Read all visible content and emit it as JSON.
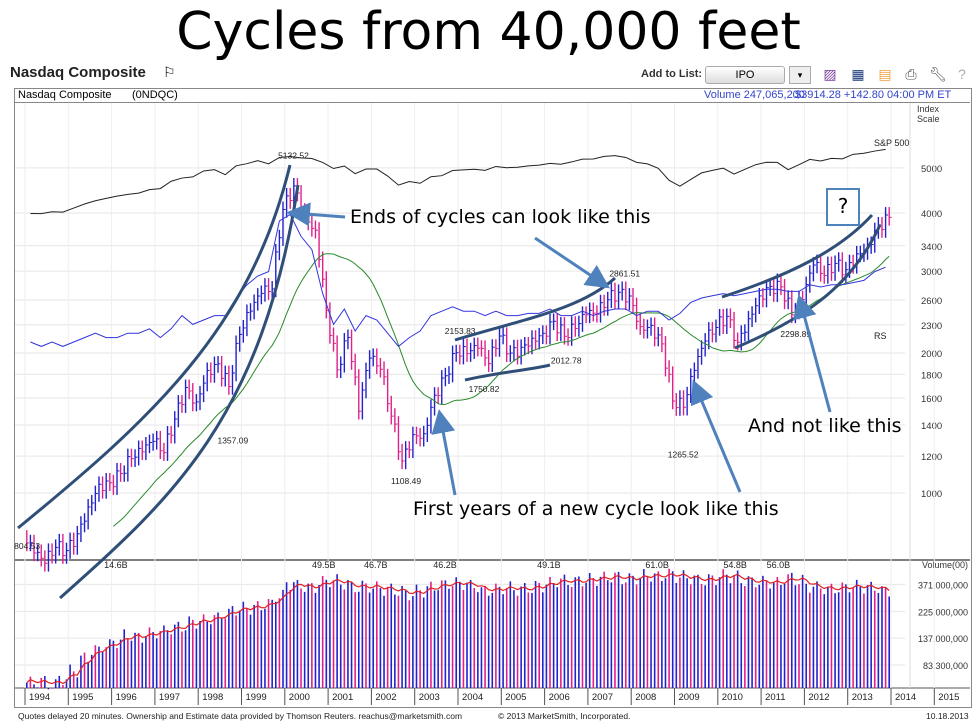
{
  "title": "Cycles from 40,000 feet",
  "header": {
    "name": "Nasdaq Composite",
    "add_to_list": "Add to List:",
    "list_value": "IPO",
    "dropdown": "▾"
  },
  "info": {
    "name": "Nasdaq Composite",
    "symbol": "(0NDQC)",
    "volume": "Volume 247,065,200",
    "quote": "$3914.28 +142.80  04:00 PM ET"
  },
  "footer": {
    "left": "Quotes delayed 20 minutes.  Ownership and Estimate data provided by Thomson Reuters. reachus@marketsmith.com",
    "copyright": "© 2013 MarketSmith, Incorporated.",
    "date": "10.18.2013"
  },
  "annotations": {
    "ends": "Ends of cycles can look like this",
    "first": "First years of a new cycle look like this",
    "not": "And not like this",
    "question": "?"
  },
  "chart_data": {
    "type": "bar",
    "scale_label": "Index Scale",
    "sp_label": "S&P 500",
    "rs_label": "RS",
    "volume_label": "Volume(00)",
    "price_ticks": [
      5000,
      4000,
      3400,
      3000,
      2600,
      2300,
      2000,
      1800,
      1600,
      1400,
      1200,
      1000
    ],
    "volume_ticks": [
      "371,000,000",
      "225,000,000",
      "137,000,000",
      "83,300,000"
    ],
    "volume_tick_values": [
      371,
      225,
      137,
      83.3
    ],
    "years": [
      "1994",
      "1995",
      "1996",
      "1997",
      "1998",
      "1999",
      "2000",
      "2001",
      "2002",
      "2003",
      "2004",
      "2005",
      "2006",
      "2007",
      "2008",
      "2009",
      "2010",
      "2011",
      "2012",
      "2013",
      "2014",
      "2015"
    ],
    "start_value": 800,
    "quarterly_close": [
      743,
      706,
      764,
      752,
      817,
      933,
      1044,
      1052,
      1101,
      1185,
      1226,
      1291,
      1221,
      1442,
      1686,
      1570,
      1835,
      1895,
      1694,
      2193,
      2461,
      2686,
      2746,
      4069,
      4573,
      3966,
      3673,
      2471,
      1840,
      2160,
      1499,
      1950,
      1845,
      1463,
      1172,
      1335,
      1341,
      1623,
      1787,
      2003,
      1994,
      2048,
      1897,
      2175,
      1999,
      2057,
      2152,
      2205,
      2340,
      2172,
      2258,
      2415,
      2422,
      2603,
      2701,
      2652,
      2279,
      2293,
      2092,
      1577,
      1529,
      1835,
      2122,
      2269,
      2398,
      2109,
      2369,
      2653,
      2781,
      2774,
      2415,
      2605,
      3091,
      2935,
      3116,
      3020,
      3267,
      3403,
      3771,
      3914
    ],
    "sp500": [
      445,
      444,
      462,
      459,
      500,
      545,
      584,
      615,
      645,
      670,
      687,
      740,
      757,
      885,
      947,
      970,
      1101,
      1133,
      1017,
      1229,
      1286,
      1372,
      1282,
      1469,
      1498,
      1454,
      1436,
      1320,
      1160,
      1224,
      1040,
      1148,
      1147,
      989,
      815,
      879,
      848,
      975,
      996,
      1112,
      1126,
      1141,
      1115,
      1212,
      1180,
      1191,
      1228,
      1248,
      1295,
      1270,
      1335,
      1418,
      1420,
      1503,
      1527,
      1468,
      1322,
      1280,
      1166,
      903,
      797,
      919,
      1057,
      1115,
      1169,
      1031,
      1141,
      1258,
      1326,
      1321,
      1131,
      1258,
      1408,
      1362,
      1441,
      1426,
      1569,
      1606,
      1682,
      1744
    ],
    "rs": [
      40,
      38,
      40,
      38,
      40,
      42,
      44,
      42,
      42,
      44,
      44,
      46,
      42,
      46,
      52,
      48,
      50,
      52,
      52,
      60,
      66,
      70,
      72,
      95,
      98,
      88,
      82,
      62,
      48,
      55,
      45,
      52,
      50,
      44,
      38,
      42,
      45,
      52,
      54,
      56,
      54,
      54,
      52,
      54,
      52,
      52,
      53,
      53,
      55,
      52,
      52,
      54,
      52,
      54,
      55,
      55,
      52,
      54,
      54,
      50,
      53,
      58,
      60,
      61,
      62,
      61,
      62,
      63,
      64,
      64,
      63,
      63,
      66,
      65,
      66,
      66,
      67,
      68,
      72,
      74
    ],
    "volume_millions": [
      60,
      62,
      58,
      65,
      75,
      95,
      110,
      120,
      130,
      145,
      140,
      150,
      155,
      165,
      170,
      185,
      190,
      200,
      215,
      235,
      240,
      245,
      260,
      300,
      380,
      360,
      350,
      390,
      400,
      380,
      350,
      360,
      350,
      340,
      330,
      310,
      330,
      350,
      370,
      380,
      380,
      360,
      330,
      340,
      350,
      340,
      345,
      360,
      380,
      400,
      390,
      400,
      410,
      420,
      430,
      410,
      420,
      440,
      430,
      450,
      430,
      420,
      400,
      410,
      440,
      430,
      400,
      390,
      390,
      380,
      420,
      400,
      360,
      350,
      340,
      350,
      360,
      355,
      350,
      330
    ],
    "price_labels": [
      {
        "text": "804.53",
        "value": 804.53,
        "year": 1994.05
      },
      {
        "text": "5132.52",
        "value": 5132.52,
        "year": 2000.2
      },
      {
        "text": "1357.09",
        "value": 1357.09,
        "year": 1998.8
      },
      {
        "text": "1108.49",
        "value": 1108.49,
        "year": 2002.8
      },
      {
        "text": "2153.83",
        "value": 2153.83,
        "year": 2004.05
      },
      {
        "text": "1750.82",
        "value": 1750.82,
        "year": 2004.6
      },
      {
        "text": "2012.78",
        "value": 2012.78,
        "year": 2006.5
      },
      {
        "text": "2861.51",
        "value": 2861.51,
        "year": 2007.85
      },
      {
        "text": "1265.52",
        "value": 1265.52,
        "year": 2009.2
      },
      {
        "text": "2298.89",
        "value": 2298.89,
        "year": 2011.8
      }
    ],
    "volume_labels": [
      {
        "text": "14.6B",
        "year": 1996.1
      },
      {
        "text": "49.5B",
        "year": 2000.9
      },
      {
        "text": "46.7B",
        "year": 2002.1
      },
      {
        "text": "46.2B",
        "year": 2003.7
      },
      {
        "text": "49.1B",
        "year": 2006.1
      },
      {
        "text": "61.0B",
        "year": 2008.6
      },
      {
        "text": "54.8B",
        "year": 2010.4
      },
      {
        "text": "56.0B",
        "year": 2011.4
      }
    ],
    "colors": {
      "up": "#2222cc",
      "down": "#e0208a",
      "ma": "#2a8a2a",
      "rs": "#3333dd",
      "sp": "#222222",
      "vol_ma": "#e02020",
      "cycle": "#2f4f78",
      "arrow": "#4f81bd"
    }
  }
}
